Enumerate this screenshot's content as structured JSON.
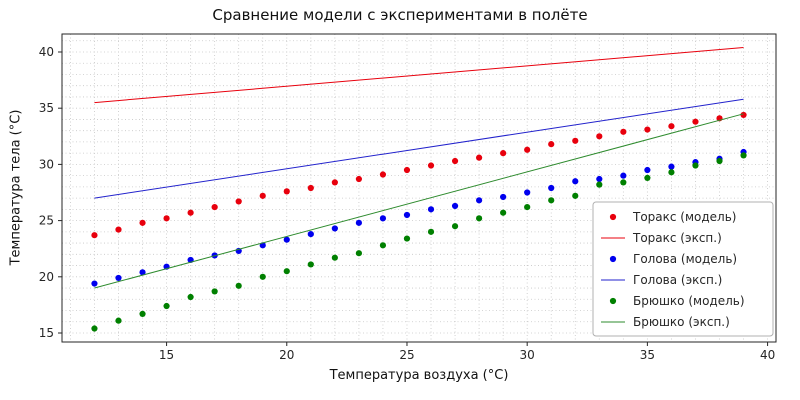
{
  "chart_data": {
    "type": "scatter",
    "title": "Сравнение модели с экспериментами в полёте",
    "xlabel": "Температура воздуха (°C)",
    "ylabel": "Температура тела (°C)",
    "xlim": [
      10.65,
      40.35
    ],
    "ylim": [
      14.2,
      41.6
    ],
    "xticks": [
      15,
      20,
      25,
      30,
      35,
      40
    ],
    "yticks": [
      15,
      20,
      25,
      30,
      35,
      40
    ],
    "grid": {
      "show": true,
      "step": 1,
      "style": "dotted"
    },
    "legend_position": "center-right",
    "series": [
      {
        "name": "Торакс (модель)",
        "kind": "scatter",
        "color": "#e8000d",
        "x": [
          12,
          13,
          14,
          15,
          16,
          17,
          18,
          19,
          20,
          21,
          22,
          23,
          24,
          25,
          26,
          27,
          28,
          29,
          30,
          31,
          32,
          33,
          34,
          35,
          36,
          37,
          38,
          39
        ],
        "y": [
          23.7,
          24.2,
          24.8,
          25.2,
          25.7,
          26.2,
          26.7,
          27.2,
          27.6,
          27.9,
          28.4,
          28.7,
          29.1,
          29.5,
          29.9,
          30.3,
          30.6,
          31.0,
          31.3,
          31.8,
          32.1,
          32.5,
          32.9,
          33.1,
          33.4,
          33.8,
          34.1,
          34.4
        ]
      },
      {
        "name": "Торакс (эксп.)",
        "kind": "line",
        "color": "#e8000d",
        "x": [
          12,
          39
        ],
        "y": [
          35.5,
          40.4
        ]
      },
      {
        "name": "Голова (модель)",
        "kind": "scatter",
        "color": "#0000ee",
        "x": [
          12,
          13,
          14,
          15,
          16,
          17,
          18,
          19,
          20,
          21,
          22,
          23,
          24,
          25,
          26,
          27,
          28,
          29,
          30,
          31,
          32,
          33,
          34,
          35,
          36,
          37,
          38,
          39
        ],
        "y": [
          19.4,
          19.9,
          20.4,
          20.9,
          21.5,
          21.9,
          22.3,
          22.8,
          23.3,
          23.8,
          24.3,
          24.8,
          25.2,
          25.5,
          26.0,
          26.3,
          26.8,
          27.1,
          27.5,
          27.9,
          28.5,
          28.7,
          29.0,
          29.5,
          29.8,
          30.2,
          30.5,
          31.1
        ]
      },
      {
        "name": "Голова (эксп.)",
        "kind": "line",
        "color": "#2222cc",
        "x": [
          12,
          39
        ],
        "y": [
          27.0,
          35.8
        ]
      },
      {
        "name": "Брюшко (модель)",
        "kind": "scatter",
        "color": "#008000",
        "x": [
          12,
          13,
          14,
          15,
          16,
          17,
          18,
          19,
          20,
          21,
          22,
          23,
          24,
          25,
          26,
          27,
          28,
          29,
          30,
          31,
          32,
          33,
          34,
          35,
          36,
          37,
          38,
          39
        ],
        "y": [
          15.4,
          16.1,
          16.7,
          17.4,
          18.2,
          18.7,
          19.2,
          20.0,
          20.5,
          21.1,
          21.7,
          22.1,
          22.8,
          23.4,
          24.0,
          24.5,
          25.2,
          25.7,
          26.2,
          26.8,
          27.2,
          28.2,
          28.4,
          28.8,
          29.3,
          29.9,
          30.3,
          30.8
        ]
      },
      {
        "name": "Брюшко (эксп.)",
        "kind": "line",
        "color": "#2e8b2e",
        "x": [
          12,
          39
        ],
        "y": [
          19.0,
          34.5
        ]
      }
    ]
  }
}
